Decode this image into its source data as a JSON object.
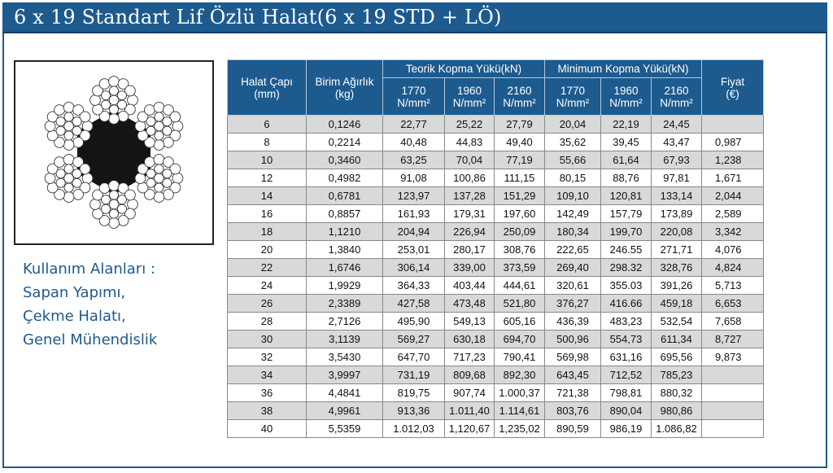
{
  "title": "6 x 19 Standart Lif Özlü Halat(6 x 19 STD + LÖ)",
  "usage": {
    "lines": [
      "Kullanım Alanları :",
      "Sapan Yapımı,",
      "Çekme Halatı,",
      "Genel Mühendislik"
    ]
  },
  "icons": {
    "rope": "wire-rope-cross-section-icon"
  },
  "colors": {
    "brand": "#1d5a8e",
    "row_shade": "#d9d9d9"
  },
  "table": {
    "headers": {
      "diameter": "Halat Çapı\n(mm)",
      "weight": "Birim Ağırlık\n(kg)",
      "theoretical": "Teorik Kopma Yükü(kN)",
      "minimum": "Minimum Kopma Yükü(kN)",
      "price": "Fiyat\n(€)",
      "grades": [
        "1770",
        "1960",
        "2160",
        "1770",
        "1960",
        "2160"
      ],
      "unit": "N/mm²"
    },
    "rows": [
      [
        "6",
        "0,1246",
        "22,77",
        "25,22",
        "27,79",
        "20,04",
        "22,19",
        "24,45",
        ""
      ],
      [
        "8",
        "0,2214",
        "40,48",
        "44,83",
        "49,40",
        "35,62",
        "39,45",
        "43,47",
        "0,987"
      ],
      [
        "10",
        "0,3460",
        "63,25",
        "70,04",
        "77,19",
        "55,66",
        "61,64",
        "67,93",
        "1,238"
      ],
      [
        "12",
        "0,4982",
        "91,08",
        "100,86",
        "111,15",
        "80,15",
        "88,76",
        "97,81",
        "1,671"
      ],
      [
        "14",
        "0,6781",
        "123,97",
        "137,28",
        "151,29",
        "109,10",
        "120,81",
        "133,14",
        "2,044"
      ],
      [
        "16",
        "0,8857",
        "161,93",
        "179,31",
        "197,60",
        "142,49",
        "157,79",
        "173,89",
        "2,589"
      ],
      [
        "18",
        "1,1210",
        "204,94",
        "226,94",
        "250,09",
        "180,34",
        "199,70",
        "220,08",
        "3,342"
      ],
      [
        "20",
        "1,3840",
        "253,01",
        "280,17",
        "308,76",
        "222,65",
        "246.55",
        "271,71",
        "4,076"
      ],
      [
        "22",
        "1,6746",
        "306,14",
        "339,00",
        "373,59",
        "269,40",
        "298.32",
        "328,76",
        "4,824"
      ],
      [
        "24",
        "1,9929",
        "364,33",
        "403,44",
        "444,61",
        "320,61",
        "355.03",
        "391,26",
        "5,713"
      ],
      [
        "26",
        "2,3389",
        "427,58",
        "473,48",
        "521,80",
        "376,27",
        "416.66",
        "459,18",
        "6,653"
      ],
      [
        "28",
        "2,7126",
        "495,90",
        "549,13",
        "605,16",
        "436,39",
        "483,23",
        "532,54",
        "7,658"
      ],
      [
        "30",
        "3,1139",
        "569,27",
        "630,18",
        "694,70",
        "500,96",
        "554,73",
        "611,34",
        "8,727"
      ],
      [
        "32",
        "3,5430",
        "647,70",
        "717,23",
        "790,41",
        "569,98",
        "631,16",
        "695,56",
        "9,873"
      ],
      [
        "34",
        "3,9997",
        "731,19",
        "809,68",
        "892,30",
        "643,45",
        "712,52",
        "785,23",
        ""
      ],
      [
        "36",
        "4,4841",
        "819,75",
        "907,74",
        "1.000,37",
        "721,38",
        "798,81",
        "880,32",
        ""
      ],
      [
        "38",
        "4,9961",
        "913,36",
        "1.011,40",
        "1.114,61",
        "803,76",
        "890,04",
        "980,86",
        ""
      ],
      [
        "40",
        "5,5359",
        "1.012,03",
        "1,120,67",
        "1,235,02",
        "890,59",
        "986,19",
        "1.086,82",
        ""
      ]
    ]
  }
}
